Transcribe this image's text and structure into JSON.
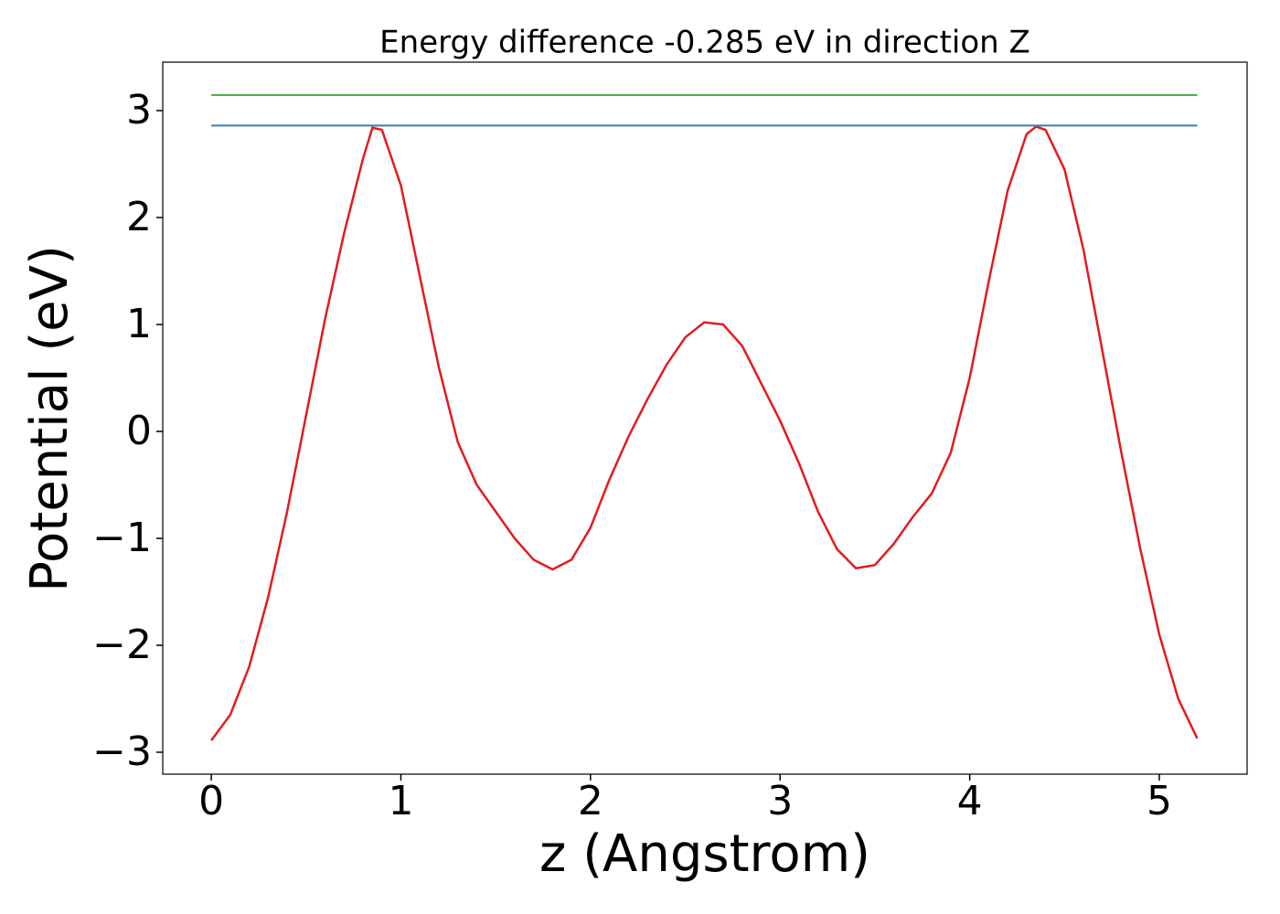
{
  "chart_data": {
    "type": "line",
    "title": "Energy difference -0.285 eV in direction Z",
    "x_label": "z (Angstrom)",
    "y_label": "Potential (eV)",
    "xlim": [
      -0.256,
      5.463
    ],
    "ylim": [
      -3.205,
      3.453
    ],
    "xticks": [
      0,
      1,
      2,
      3,
      4,
      5
    ],
    "yticks": [
      {
        "value": -3,
        "label": "−3"
      },
      {
        "value": -2,
        "label": "−2"
      },
      {
        "value": -1,
        "label": "−1"
      },
      0,
      1,
      2,
      3
    ],
    "series": [
      {
        "color": "#e41a1c",
        "x": [
          0,
          0.1,
          0.2,
          0.3,
          0.4,
          0.5,
          0.6,
          0.7,
          0.8,
          0.85,
          0.9,
          1.0,
          1.1,
          1.2,
          1.3,
          1.4,
          1.5,
          1.6,
          1.7,
          1.8,
          1.9,
          2.0,
          2.1,
          2.2,
          2.3,
          2.4,
          2.5,
          2.6,
          2.7,
          2.8,
          2.9,
          3.0,
          3.1,
          3.2,
          3.3,
          3.4,
          3.5,
          3.6,
          3.7,
          3.8,
          3.9,
          4.0,
          4.1,
          4.2,
          4.3,
          4.35,
          4.4,
          4.5,
          4.6,
          4.7,
          4.8,
          4.9,
          5.0,
          5.1,
          5.2
        ],
        "values": [
          -2.89,
          -2.65,
          -2.2,
          -1.55,
          -0.75,
          0.15,
          1.05,
          1.85,
          2.55,
          2.84,
          2.82,
          2.3,
          1.45,
          0.6,
          -0.1,
          -0.5,
          -0.75,
          -1.0,
          -1.2,
          -1.29,
          -1.2,
          -0.9,
          -0.45,
          -0.05,
          0.3,
          0.62,
          0.88,
          1.02,
          1.0,
          0.8,
          0.45,
          0.1,
          -0.3,
          -0.75,
          -1.1,
          -1.28,
          -1.25,
          -1.05,
          -0.8,
          -0.58,
          -0.2,
          0.5,
          1.4,
          2.25,
          2.78,
          2.85,
          2.82,
          2.45,
          1.7,
          0.75,
          -0.2,
          -1.1,
          -1.9,
          -2.5,
          -2.87
        ]
      },
      {
        "color": "#377eb8",
        "x": [
          0,
          5.2
        ],
        "values": [
          2.86,
          2.86
        ]
      },
      {
        "color": "#4daf4a",
        "x": [
          0,
          5.2
        ],
        "values": [
          3.145,
          3.145
        ]
      }
    ]
  }
}
